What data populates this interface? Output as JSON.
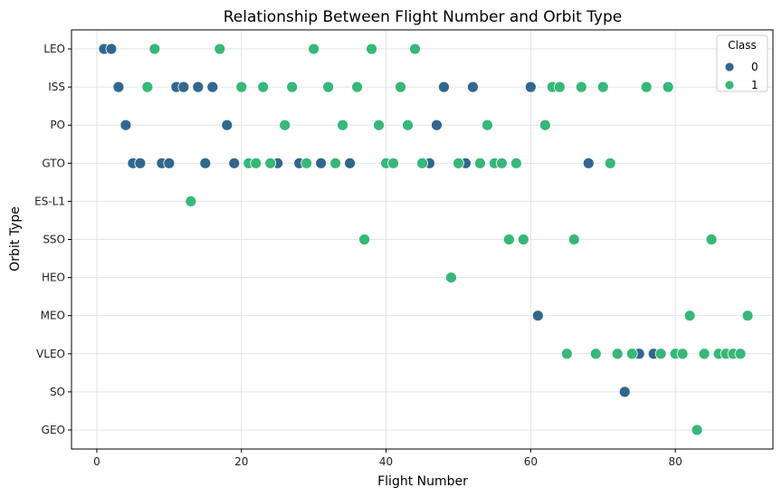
{
  "chart_data": {
    "type": "scatter",
    "title": "Relationship Between Flight Number and Orbit Type",
    "xlabel": "Flight Number",
    "ylabel": "Orbit Type",
    "xlim": [
      -3.5,
      93.5
    ],
    "xticks": [
      0,
      20,
      40,
      60,
      80
    ],
    "categories": [
      "LEO",
      "ISS",
      "PO",
      "GTO",
      "ES-L1",
      "SSO",
      "HEO",
      "MEO",
      "VLEO",
      "SO",
      "GEO"
    ],
    "grid": true,
    "legend": {
      "title": "Class",
      "position": "top-right"
    },
    "colors": {
      "0": "#31678e",
      "1": "#37b778"
    },
    "series": [
      {
        "name": "0",
        "points": [
          {
            "x": 1,
            "y": "LEO"
          },
          {
            "x": 2,
            "y": "LEO"
          },
          {
            "x": 3,
            "y": "ISS"
          },
          {
            "x": 11,
            "y": "ISS"
          },
          {
            "x": 12,
            "y": "ISS"
          },
          {
            "x": 14,
            "y": "ISS"
          },
          {
            "x": 16,
            "y": "ISS"
          },
          {
            "x": 48,
            "y": "ISS"
          },
          {
            "x": 52,
            "y": "ISS"
          },
          {
            "x": 60,
            "y": "ISS"
          },
          {
            "x": 4,
            "y": "PO"
          },
          {
            "x": 18,
            "y": "PO"
          },
          {
            "x": 47,
            "y": "PO"
          },
          {
            "x": 5,
            "y": "GTO"
          },
          {
            "x": 6,
            "y": "GTO"
          },
          {
            "x": 9,
            "y": "GTO"
          },
          {
            "x": 10,
            "y": "GTO"
          },
          {
            "x": 15,
            "y": "GTO"
          },
          {
            "x": 19,
            "y": "GTO"
          },
          {
            "x": 25,
            "y": "GTO"
          },
          {
            "x": 28,
            "y": "GTO"
          },
          {
            "x": 31,
            "y": "GTO"
          },
          {
            "x": 35,
            "y": "GTO"
          },
          {
            "x": 46,
            "y": "GTO"
          },
          {
            "x": 51,
            "y": "GTO"
          },
          {
            "x": 68,
            "y": "GTO"
          },
          {
            "x": 61,
            "y": "MEO"
          },
          {
            "x": 75,
            "y": "VLEO"
          },
          {
            "x": 77,
            "y": "VLEO"
          },
          {
            "x": 73,
            "y": "SO"
          }
        ]
      },
      {
        "name": "1",
        "points": [
          {
            "x": 8,
            "y": "LEO"
          },
          {
            "x": 17,
            "y": "LEO"
          },
          {
            "x": 30,
            "y": "LEO"
          },
          {
            "x": 38,
            "y": "LEO"
          },
          {
            "x": 44,
            "y": "LEO"
          },
          {
            "x": 7,
            "y": "ISS"
          },
          {
            "x": 20,
            "y": "ISS"
          },
          {
            "x": 23,
            "y": "ISS"
          },
          {
            "x": 27,
            "y": "ISS"
          },
          {
            "x": 32,
            "y": "ISS"
          },
          {
            "x": 36,
            "y": "ISS"
          },
          {
            "x": 42,
            "y": "ISS"
          },
          {
            "x": 63,
            "y": "ISS"
          },
          {
            "x": 64,
            "y": "ISS"
          },
          {
            "x": 67,
            "y": "ISS"
          },
          {
            "x": 70,
            "y": "ISS"
          },
          {
            "x": 76,
            "y": "ISS"
          },
          {
            "x": 79,
            "y": "ISS"
          },
          {
            "x": 26,
            "y": "PO"
          },
          {
            "x": 34,
            "y": "PO"
          },
          {
            "x": 39,
            "y": "PO"
          },
          {
            "x": 43,
            "y": "PO"
          },
          {
            "x": 54,
            "y": "PO"
          },
          {
            "x": 62,
            "y": "PO"
          },
          {
            "x": 21,
            "y": "GTO"
          },
          {
            "x": 22,
            "y": "GTO"
          },
          {
            "x": 24,
            "y": "GTO"
          },
          {
            "x": 29,
            "y": "GTO"
          },
          {
            "x": 33,
            "y": "GTO"
          },
          {
            "x": 40,
            "y": "GTO"
          },
          {
            "x": 41,
            "y": "GTO"
          },
          {
            "x": 45,
            "y": "GTO"
          },
          {
            "x": 50,
            "y": "GTO"
          },
          {
            "x": 53,
            "y": "GTO"
          },
          {
            "x": 55,
            "y": "GTO"
          },
          {
            "x": 56,
            "y": "GTO"
          },
          {
            "x": 58,
            "y": "GTO"
          },
          {
            "x": 71,
            "y": "GTO"
          },
          {
            "x": 13,
            "y": "ES-L1"
          },
          {
            "x": 37,
            "y": "SSO"
          },
          {
            "x": 57,
            "y": "SSO"
          },
          {
            "x": 59,
            "y": "SSO"
          },
          {
            "x": 66,
            "y": "SSO"
          },
          {
            "x": 85,
            "y": "SSO"
          },
          {
            "x": 49,
            "y": "HEO"
          },
          {
            "x": 82,
            "y": "MEO"
          },
          {
            "x": 90,
            "y": "MEO"
          },
          {
            "x": 65,
            "y": "VLEO"
          },
          {
            "x": 69,
            "y": "VLEO"
          },
          {
            "x": 72,
            "y": "VLEO"
          },
          {
            "x": 74,
            "y": "VLEO"
          },
          {
            "x": 78,
            "y": "VLEO"
          },
          {
            "x": 80,
            "y": "VLEO"
          },
          {
            "x": 81,
            "y": "VLEO"
          },
          {
            "x": 84,
            "y": "VLEO"
          },
          {
            "x": 86,
            "y": "VLEO"
          },
          {
            "x": 87,
            "y": "VLEO"
          },
          {
            "x": 88,
            "y": "VLEO"
          },
          {
            "x": 89,
            "y": "VLEO"
          },
          {
            "x": 83,
            "y": "GEO"
          }
        ]
      }
    ]
  }
}
